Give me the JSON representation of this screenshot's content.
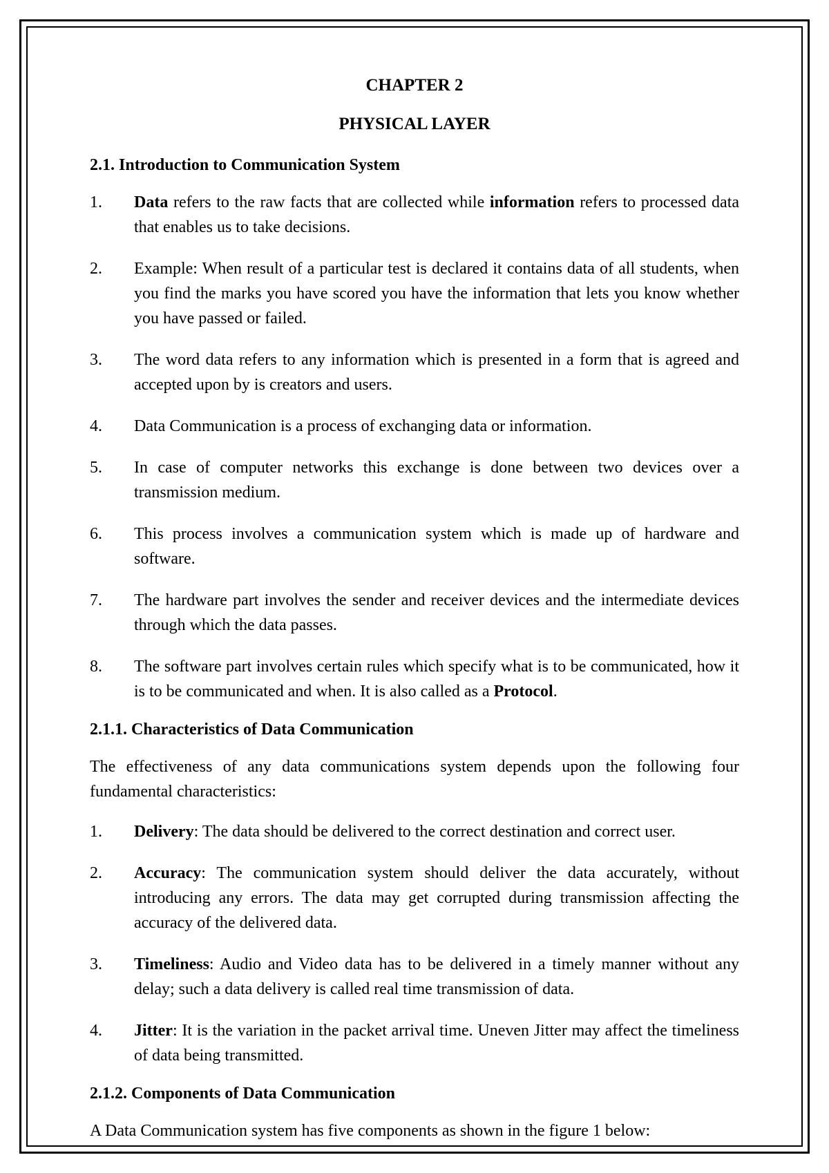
{
  "chapter_title": "CHAPTER 2",
  "chapter_subtitle": "PHYSICAL LAYER",
  "section_2_1": {
    "heading": "2.1. Introduction to Communication System",
    "items": [
      {
        "num": "1.",
        "html": "<b>Data</b> refers to the raw facts that are collected while <b>information</b> refers to processed data that enables us to take decisions."
      },
      {
        "num": "2.",
        "html": "Example: When result of a particular test is declared it contains data of all students, when you find the marks you have scored you have the information that lets you know whether you have passed or failed."
      },
      {
        "num": "3.",
        "html": "The word data refers to any information which is presented in a form that is agreed and accepted upon by is creators and users."
      },
      {
        "num": "4.",
        "html": "Data Communication is a process of exchanging data or information."
      },
      {
        "num": "5.",
        "html": "In case of computer networks this exchange is done between two devices over a transmission medium."
      },
      {
        "num": "6.",
        "html": "This process involves a communication system which is made up of hardware and software."
      },
      {
        "num": "7.",
        "html": "The hardware part involves the sender and receiver devices and the intermediate devices through which the data passes."
      },
      {
        "num": "8.",
        "html": "The software part involves certain rules which specify what is to be communicated, how it is to be communicated and when. It is also called as a <b>Protocol</b>."
      }
    ]
  },
  "section_2_1_1": {
    "heading": "2.1.1. Characteristics of Data Communication",
    "intro": "The effectiveness of any data communications system depends upon the following four fundamental characteristics:",
    "items": [
      {
        "num": "1.",
        "html": "<b>Delivery</b>: The data should be delivered to the correct destination and correct user."
      },
      {
        "num": "2.",
        "html": "<b>Accuracy</b>: The communication system should deliver the data accurately, without introducing any errors. The data may get corrupted during transmission affecting the accuracy of the delivered data."
      },
      {
        "num": "3.",
        "html": "<b>Timeliness</b>: Audio and Video data has to be delivered in a timely manner without any delay; such a data delivery is called real time transmission of data."
      },
      {
        "num": "4.",
        "html": "<b>Jitter</b>: It is the variation in the packet arrival time. Uneven Jitter may affect the timeliness of data being transmitted."
      }
    ]
  },
  "section_2_1_2": {
    "heading": "2.1.2. Components of Data Communication",
    "intro": "A Data Communication system has five components as shown in the figure 1 below:"
  }
}
